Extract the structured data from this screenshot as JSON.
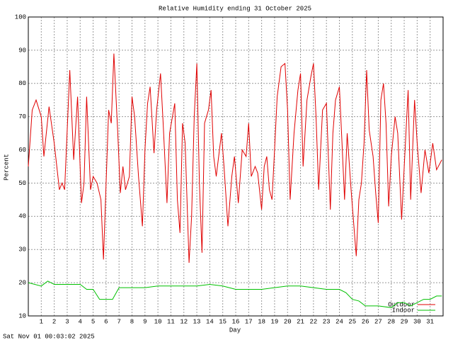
{
  "chart_data": {
    "type": "line",
    "title": "Relative Humidity ending 31 October 2025",
    "x_label": "Day",
    "y_label": "Percent",
    "footer": "Sat Nov 01 00:03:02 2025",
    "xlim": [
      0,
      32
    ],
    "xticks": [
      1,
      2,
      3,
      4,
      5,
      6,
      7,
      8,
      9,
      10,
      11,
      12,
      13,
      14,
      15,
      16,
      17,
      18,
      19,
      20,
      21,
      22,
      23,
      24,
      25,
      26,
      27,
      28,
      29,
      30,
      31
    ],
    "ylim": [
      10,
      100
    ],
    "yticks": [
      10,
      20,
      30,
      40,
      50,
      60,
      70,
      80,
      90,
      100
    ],
    "grid": true,
    "legend": "lower right",
    "series": [
      {
        "name": "Outdoor",
        "color": "#e00000",
        "x": [
          0,
          0.3,
          0.6,
          1.0,
          1.2,
          1.6,
          2.0,
          2.4,
          2.6,
          2.8,
          3.2,
          3.5,
          3.8,
          4.1,
          4.3,
          4.5,
          4.8,
          5.0,
          5.3,
          5.6,
          5.8,
          6.0,
          6.2,
          6.4,
          6.6,
          6.9,
          7.1,
          7.3,
          7.5,
          7.8,
          8.0,
          8.2,
          8.5,
          8.8,
          9.0,
          9.2,
          9.4,
          9.7,
          9.9,
          10.2,
          10.4,
          10.7,
          10.9,
          11.3,
          11.5,
          11.7,
          11.9,
          12.1,
          12.4,
          12.6,
          12.8,
          13.0,
          13.2,
          13.4,
          13.6,
          13.9,
          14.1,
          14.3,
          14.5,
          14.9,
          15.1,
          15.4,
          15.7,
          15.9,
          16.2,
          16.5,
          16.8,
          17.0,
          17.2,
          17.5,
          17.7,
          18.0,
          18.2,
          18.4,
          18.6,
          18.8,
          19.0,
          19.2,
          19.5,
          19.8,
          20.0,
          20.2,
          20.5,
          20.8,
          21.0,
          21.2,
          21.5,
          21.8,
          22.0,
          22.2,
          22.4,
          22.7,
          23.0,
          23.3,
          23.5,
          23.7,
          24.0,
          24.2,
          24.4,
          24.6,
          24.9,
          25.3,
          25.5,
          25.7,
          25.9,
          26.1,
          26.3,
          26.6,
          26.8,
          27.0,
          27.2,
          27.4,
          27.6,
          27.8,
          28.0,
          28.3,
          28.5,
          28.8,
          29.0,
          29.3,
          29.5,
          29.8,
          30.0,
          30.3,
          30.6,
          30.9,
          31.2,
          31.5,
          31.9
        ],
        "values": [
          55,
          72,
          75,
          70,
          58,
          73,
          62,
          48,
          50,
          48,
          84,
          57,
          76,
          44,
          50,
          76,
          48,
          52,
          50,
          45,
          27,
          50,
          72,
          68,
          89,
          65,
          47,
          55,
          48,
          52,
          76,
          70,
          52,
          37,
          60,
          74,
          79,
          59,
          72,
          83,
          68,
          44,
          65,
          74,
          45,
          35,
          68,
          62,
          26,
          40,
          70,
          86,
          50,
          29,
          68,
          72,
          78,
          58,
          52,
          65,
          55,
          37,
          52,
          58,
          44,
          60,
          58,
          68,
          52,
          55,
          53,
          42,
          55,
          58,
          48,
          45,
          60,
          76,
          85,
          86,
          72,
          45,
          65,
          78,
          83,
          55,
          75,
          82,
          86,
          70,
          48,
          72,
          74,
          42,
          65,
          75,
          79,
          62,
          45,
          65,
          48,
          28,
          45,
          50,
          62,
          84,
          66,
          58,
          47,
          38,
          75,
          80,
          68,
          43,
          58,
          70,
          65,
          39,
          55,
          78,
          45,
          75,
          62,
          47,
          60,
          53,
          62,
          54,
          57
        ]
      },
      {
        "name": "Indoor",
        "color": "#00c000",
        "x": [
          0,
          1.0,
          1.5,
          2.0,
          3.0,
          4.0,
          4.5,
          5.0,
          5.5,
          6.5,
          7.0,
          8.0,
          9.0,
          10.0,
          11.0,
          12.0,
          13.0,
          14.0,
          15.0,
          16.0,
          17.0,
          18.0,
          19.0,
          20.0,
          21.0,
          22.0,
          23.0,
          24.0,
          24.5,
          25.0,
          25.5,
          26.0,
          27.0,
          28.0,
          28.5,
          29.0,
          29.5,
          30.0,
          30.5,
          31.0,
          31.5,
          31.9
        ],
        "values": [
          20,
          19,
          20.5,
          19.5,
          19.5,
          19.5,
          18,
          18,
          15,
          15,
          18.5,
          18.5,
          18.5,
          19,
          19,
          19,
          19,
          19.5,
          19,
          18,
          18,
          18,
          18.5,
          19,
          19,
          18.5,
          18,
          18,
          17,
          15,
          14.5,
          13,
          13,
          12.5,
          14,
          14,
          13,
          14,
          15,
          15,
          16,
          16
        ]
      }
    ]
  }
}
